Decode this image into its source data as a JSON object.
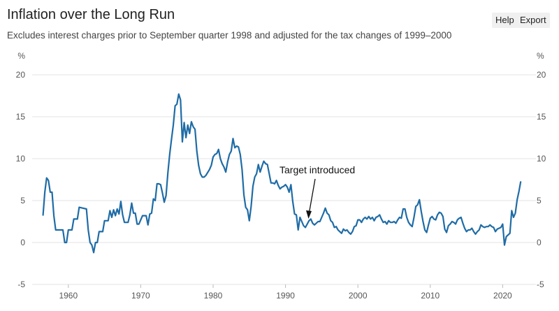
{
  "chart_data": {
    "type": "line",
    "title": "Inflation over the Long Run",
    "subtitle": "Excludes interest charges prior to September quarter 1998 and adjusted for the tax changes of 1999–2000",
    "y_label": "%",
    "y2_label": "%",
    "annotation": "Target introduced",
    "xlim": [
      1955,
      2024.5
    ],
    "xticks": [
      1960,
      1970,
      1980,
      1990,
      2000,
      2010,
      2020
    ],
    "ylim": [
      -5,
      20
    ],
    "yticks": [
      -5,
      0,
      5,
      10,
      15,
      20
    ],
    "y2lim": [
      -5,
      20
    ],
    "y2ticks": [
      -5,
      0,
      5,
      10,
      15,
      20
    ],
    "grid": true,
    "series": [
      {
        "name": "Inflation",
        "color": "#1f6ca6",
        "x": [
          1956.5,
          1956.75,
          1957,
          1957.25,
          1957.5,
          1957.75,
          1958,
          1958.25,
          1958.75,
          1959.25,
          1959.5,
          1959.75,
          1960,
          1960.5,
          1960.75,
          1961.25,
          1961.5,
          1962,
          1962.5,
          1962.75,
          1963,
          1963.25,
          1963.5,
          1963.75,
          1964,
          1964.25,
          1964.75,
          1965,
          1965.5,
          1965.75,
          1966,
          1966.25,
          1966.5,
          1966.75,
          1967,
          1967.25,
          1967.5,
          1967.75,
          1968.25,
          1968.5,
          1968.75,
          1969,
          1969.25,
          1969.5,
          1969.75,
          1970.25,
          1970.75,
          1971,
          1971.25,
          1971.5,
          1971.75,
          1972,
          1972.25,
          1972.5,
          1972.75,
          1973,
          1973.25,
          1973.5,
          1973.75,
          1974,
          1974.25,
          1974.5,
          1974.75,
          1975,
          1975.25,
          1975.5,
          1975.75,
          1976,
          1976.25,
          1976.5,
          1976.75,
          1977,
          1977.25,
          1977.5,
          1977.75,
          1978,
          1978.25,
          1978.5,
          1978.75,
          1979,
          1979.5,
          1979.75,
          1980,
          1980.25,
          1980.5,
          1980.75,
          1981,
          1981.25,
          1981.5,
          1981.75,
          1982,
          1982.25,
          1982.5,
          1982.75,
          1983,
          1983.25,
          1983.5,
          1983.75,
          1984,
          1984.25,
          1984.5,
          1984.75,
          1985,
          1985.25,
          1985.5,
          1985.75,
          1986,
          1986.25,
          1986.5,
          1986.75,
          1987,
          1987.25,
          1987.5,
          1987.75,
          1988,
          1988.25,
          1988.5,
          1988.75,
          1989,
          1989.25,
          1989.5,
          1989.75,
          1990,
          1990.25,
          1990.5,
          1990.75,
          1991,
          1991.25,
          1991.5,
          1991.75,
          1992,
          1992.25,
          1992.5,
          1992.75,
          1993,
          1993.25,
          1993.5,
          1993.75,
          1994,
          1994.5,
          1994.75,
          1995,
          1995.25,
          1995.5,
          1995.75,
          1996,
          1996.25,
          1996.5,
          1996.75,
          1997,
          1997.25,
          1997.5,
          1997.75,
          1998,
          1998.25,
          1998.5,
          1998.75,
          1999,
          1999.25,
          1999.5,
          1999.75,
          2000,
          2000.25,
          2000.5,
          2000.75,
          2001,
          2001.25,
          2001.5,
          2001.75,
          2002,
          2002.25,
          2002.5,
          2002.75,
          2003,
          2003.25,
          2003.5,
          2003.75,
          2004,
          2004.25,
          2004.5,
          2004.75,
          2005,
          2005.25,
          2005.5,
          2005.75,
          2006,
          2006.25,
          2006.5,
          2006.75,
          2007,
          2007.25,
          2007.5,
          2007.75,
          2008,
          2008.25,
          2008.5,
          2008.75,
          2009,
          2009.25,
          2009.5,
          2009.75,
          2010,
          2010.25,
          2010.5,
          2010.75,
          2011,
          2011.25,
          2011.5,
          2011.75,
          2012,
          2012.25,
          2012.5,
          2012.75,
          2013,
          2013.25,
          2013.5,
          2013.75,
          2014,
          2014.25,
          2014.5,
          2014.75,
          2015,
          2015.25,
          2015.5,
          2015.75,
          2016,
          2016.25,
          2016.5,
          2016.75,
          2017,
          2017.25,
          2017.5,
          2017.75,
          2018,
          2018.25,
          2018.5,
          2018.75,
          2019,
          2019.25,
          2019.5,
          2019.75,
          2020,
          2020.25,
          2020.5,
          2020.75,
          2021,
          2021.25,
          2021.5,
          2021.75,
          2022,
          2022.25,
          2022.5
        ],
        "values": [
          3.2,
          6.0,
          7.7,
          7.4,
          6.0,
          6.0,
          3.2,
          1.5,
          1.5,
          1.5,
          0.0,
          0.0,
          1.5,
          1.5,
          2.8,
          2.8,
          4.2,
          4.1,
          4.0,
          1.5,
          0.0,
          -0.3,
          -1.2,
          0.0,
          0.0,
          1.3,
          1.3,
          2.6,
          2.6,
          3.8,
          3.0,
          3.9,
          3.2,
          4.0,
          3.4,
          4.9,
          3.3,
          2.4,
          2.4,
          3.3,
          4.7,
          3.5,
          3.5,
          2.2,
          2.2,
          3.2,
          3.2,
          2.1,
          3.4,
          3.5,
          5.2,
          5.0,
          7.0,
          7.0,
          6.9,
          5.9,
          4.8,
          5.6,
          8.3,
          10.5,
          12.3,
          14.0,
          16.3,
          16.5,
          17.7,
          17.0,
          12.0,
          14.3,
          12.5,
          14.0,
          13.0,
          14.4,
          13.8,
          13.5,
          10.9,
          9.2,
          8.2,
          7.8,
          7.8,
          8.0,
          8.7,
          9.2,
          10.2,
          10.5,
          10.6,
          11.1,
          10.0,
          9.4,
          9.0,
          8.4,
          9.6,
          10.5,
          10.9,
          12.4,
          11.3,
          11.5,
          11.4,
          10.5,
          8.7,
          5.7,
          4.2,
          3.9,
          2.6,
          4.3,
          6.7,
          7.8,
          8.2,
          9.3,
          8.4,
          9.1,
          9.7,
          9.4,
          9.3,
          8.2,
          7.1,
          7.1,
          7.0,
          7.4,
          6.8,
          6.4,
          6.6,
          6.7,
          6.9,
          6.6,
          6.0,
          6.9,
          4.9,
          3.4,
          3.3,
          1.5,
          3.0,
          2.5,
          2.0,
          1.8,
          2.2,
          2.6,
          2.8,
          2.3,
          2.1,
          2.5,
          2.5,
          3.0,
          3.5,
          4.1,
          3.5,
          3.3,
          2.6,
          2.4,
          1.8,
          1.9,
          1.5,
          1.3,
          1.1,
          1.6,
          1.4,
          1.5,
          1.2,
          1.0,
          1.3,
          1.9,
          2.0,
          2.7,
          2.7,
          2.4,
          2.8,
          3.0,
          2.8,
          3.1,
          2.8,
          3.0,
          2.6,
          3.0,
          3.1,
          3.3,
          2.8,
          2.4,
          2.5,
          2.2,
          2.6,
          2.4,
          2.4,
          2.5,
          2.3,
          2.7,
          3.0,
          2.9,
          4.0,
          4.0,
          3.0,
          2.4,
          2.1,
          1.9,
          3.0,
          4.3,
          4.5,
          5.1,
          3.7,
          2.5,
          1.5,
          1.2,
          2.1,
          2.9,
          3.1,
          2.8,
          2.7,
          3.3,
          3.6,
          3.5,
          3.1,
          1.6,
          1.2,
          2.0,
          2.2,
          2.5,
          2.4,
          2.2,
          2.7,
          2.9,
          3.0,
          2.3,
          1.7,
          1.3,
          1.5,
          1.5,
          1.7,
          1.3,
          1.0,
          1.3,
          1.5,
          2.1,
          1.9,
          1.8,
          1.9,
          1.9,
          2.1,
          1.9,
          1.8,
          1.3,
          1.6,
          1.7,
          1.8,
          2.2,
          -0.3,
          0.7,
          0.9,
          1.1,
          3.8,
          3.0,
          3.5,
          5.1,
          6.1,
          7.3
        ]
      }
    ]
  },
  "toolbar": [
    "Help",
    "Export"
  ]
}
